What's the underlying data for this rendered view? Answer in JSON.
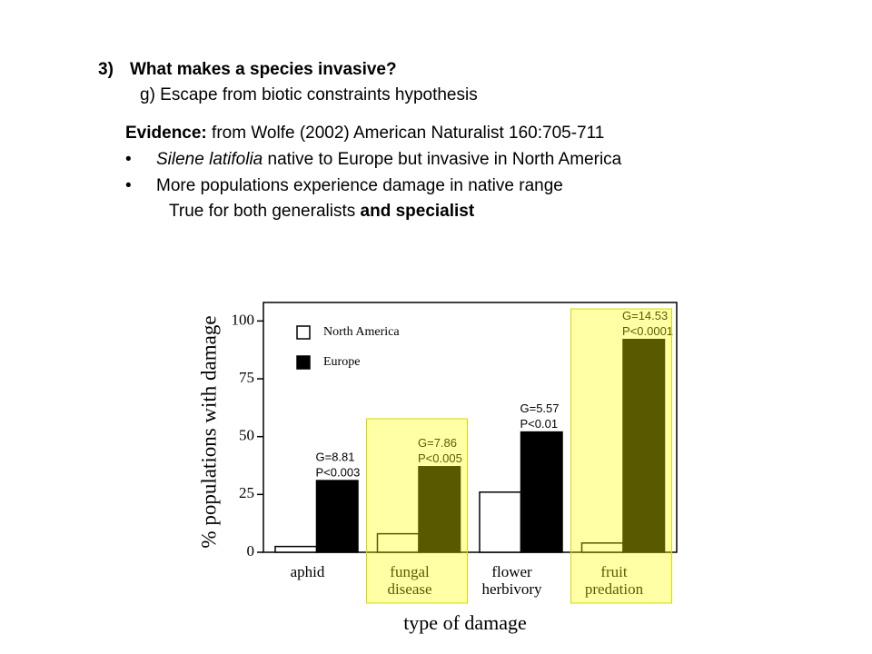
{
  "slide": {
    "heading": {
      "number": "3)",
      "text": "What makes a species invasive?"
    },
    "subheading": "g) Escape from biotic constraints hypothesis",
    "evidence": {
      "label": "Evidence:",
      "text": "from Wolfe (2002) American Naturalist 160:705-711"
    },
    "bullets": [
      {
        "marker": "•",
        "italic": "Silene latifolia",
        "text": "native to Europe but invasive in North America"
      },
      {
        "marker": "•",
        "text": "More populations experience damage in native range"
      }
    ],
    "note": {
      "text": "True for both generalists",
      "bold": "and specialist"
    }
  },
  "chart_data": {
    "type": "bar",
    "x_label": "type of damage",
    "y_label": "% populations with damage",
    "categories": [
      [
        "aphid"
      ],
      [
        "fungal",
        "disease"
      ],
      [
        "flower",
        "herbivory"
      ],
      [
        "fruit",
        "predation"
      ]
    ],
    "highlight": [
      false,
      true,
      false,
      true
    ],
    "highlight_color": "rgba(255,255,0,0.35)",
    "series": [
      {
        "name": "North America",
        "color": "#ffffff",
        "values": [
          2.5,
          8,
          26,
          4
        ]
      },
      {
        "name": "Europe",
        "color": "#000000",
        "values": [
          31,
          37,
          52,
          92
        ]
      }
    ],
    "annotations": [
      [
        "G=8.81",
        "P<0.003"
      ],
      [
        "G=7.86",
        "P<0.005"
      ],
      [
        "G=5.57",
        "P<0.01"
      ],
      [
        "G=14.53",
        "P<0.0001"
      ]
    ],
    "ylim": [
      0,
      108
    ],
    "yticks": [
      0,
      25,
      50,
      75,
      100
    ],
    "legend": "top-left"
  }
}
